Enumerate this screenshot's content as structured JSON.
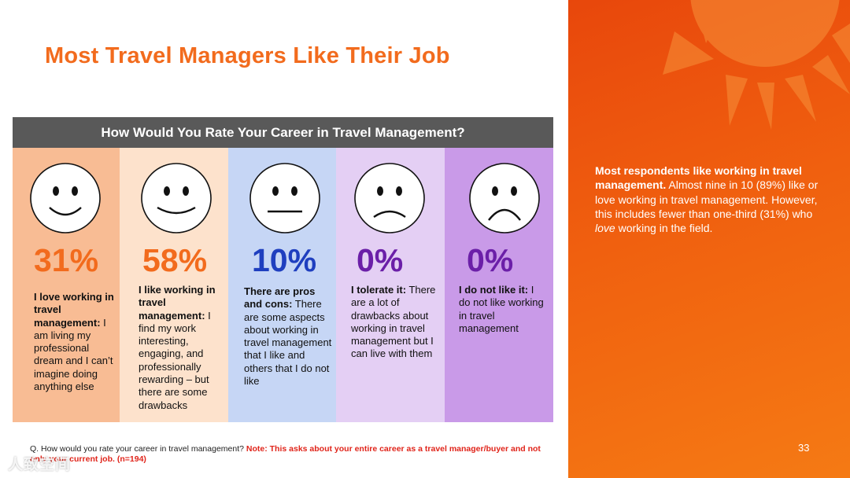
{
  "title": "Most Travel Managers Like Their Job",
  "panel": {
    "header": "How Would You Rate Your Career in Travel Management?",
    "columns": [
      {
        "face": "big-smile",
        "percent": "31%",
        "bold": "I love working in travel management:",
        "text": " I am living my professional dream and I can’t imagine doing anything else",
        "bg": "#f8bc94",
        "pct_color": "#f26b1d"
      },
      {
        "face": "smile",
        "percent": "58%",
        "bold": "I like working in travel management:",
        "text": " I find my work interesting, engaging, and professionally rewarding – but there are some drawbacks",
        "bg": "#fde2cc",
        "pct_color": "#f26b1d"
      },
      {
        "face": "neutral",
        "percent": "10%",
        "bold": "There are pros and cons:",
        "text": " There are some aspects about working in travel management that I like and others that I do not like",
        "bg": "#c6d6f5",
        "pct_color": "#1f3fbf"
      },
      {
        "face": "frown",
        "percent": "0%",
        "bold": "I tolerate it:",
        "text": " There are a lot of drawbacks about working in travel management but I can live with them",
        "bg": "#e4cff4",
        "pct_color": "#6b1fa8"
      },
      {
        "face": "big-frown",
        "percent": "0%",
        "bold": "I do not like it:",
        "text": " I do not like working in travel management",
        "bg": "#c99ae8",
        "pct_color": "#6b1fa8"
      }
    ]
  },
  "sidebar": {
    "bold": "Most respondents like working in travel management.",
    "text1": " Almost nine in 10 (89%) like or love working in travel management. However, this includes fewer than one-third (31%) who ",
    "italic": "love",
    "text2": " working in the field.",
    "page_number": "33"
  },
  "footnote": {
    "question": "Q. How would you rate your career in travel management? ",
    "note": "Note: This asks about your entire career as a travel manager/buyer and not only your current job. (n=194)"
  },
  "watermark": "人致空间",
  "colors": {
    "accent": "#f26b1d",
    "header": "#595959",
    "side_start": "#e8470c",
    "side_end": "#f57a14"
  }
}
